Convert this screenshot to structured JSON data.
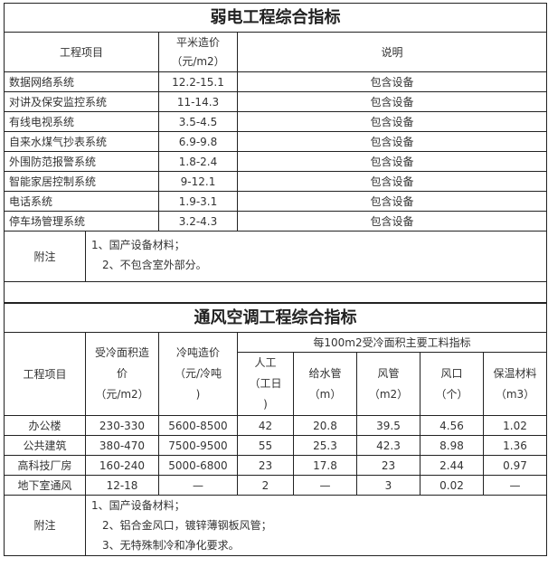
{
  "weak": {
    "title": "弱电工程综合指标",
    "headers": {
      "item": "工程项目",
      "price_line1": "平米造价",
      "price_line2": "（元/m2）",
      "desc": "说明"
    },
    "rows": [
      {
        "item": "数据网络系统",
        "price": "12.2-15.1",
        "desc": "包含设备"
      },
      {
        "item": "对讲及保安监控系统",
        "price": "11-14.3",
        "desc": "包含设备"
      },
      {
        "item": "有线电视系统",
        "price": "3.5-4.5",
        "desc": "包含设备"
      },
      {
        "item": "自来水煤气抄表系统",
        "price": "6.9-9.8",
        "desc": "包含设备"
      },
      {
        "item": "外围防范报警系统",
        "price": "1.8-2.4",
        "desc": "包含设备"
      },
      {
        "item": "智能家居控制系统",
        "price": "9-12.1",
        "desc": "包含设备"
      },
      {
        "item": "电话系统",
        "price": "1.9-3.1",
        "desc": "包含设备"
      },
      {
        "item": "停车场管理系统",
        "price": "3.2-4.3",
        "desc": "包含设备"
      }
    ],
    "note_label": "附注",
    "notes": [
      "1、国产设备材料；",
      "2、不包含室外部分。"
    ]
  },
  "hvac": {
    "title": "通风空调工程综合指标",
    "headers": {
      "item": "工程项目",
      "area_price": [
        "受冷面积造",
        "价",
        "（元/m2）"
      ],
      "ton_price": [
        "冷吨造价",
        "（元/冷吨",
        ")"
      ],
      "group": "每100m2受冷面积主要工料指标",
      "labor": [
        "人工",
        "（工日",
        ")"
      ],
      "water": [
        "给水管",
        "（m）"
      ],
      "duct": [
        "风管",
        "（m2）"
      ],
      "vent": [
        "风口",
        "（个）"
      ],
      "insul": [
        "保温材料",
        "（m3）"
      ]
    },
    "rows": [
      {
        "item": "办公楼",
        "area_price": "230-330",
        "ton_price": "5600-8500",
        "labor": "42",
        "water": "20.8",
        "duct": "39.5",
        "vent": "4.56",
        "insul": "1.02"
      },
      {
        "item": "公共建筑",
        "area_price": "380-470",
        "ton_price": "7500-9500",
        "labor": "55",
        "water": "25.3",
        "duct": "42.3",
        "vent": "8.98",
        "insul": "1.36"
      },
      {
        "item": "高科技厂房",
        "area_price": "160-240",
        "ton_price": "5000-6800",
        "labor": "23",
        "water": "17.8",
        "duct": "23",
        "vent": "2.44",
        "insul": "0.97"
      },
      {
        "item": "地下室通风",
        "area_price": "12-18",
        "ton_price": "—",
        "labor": "2",
        "water": "—",
        "duct": "3",
        "vent": "0.02",
        "insul": "—"
      }
    ],
    "note_label": "附注",
    "notes": [
      "1、国产设备材料；",
      "2、铝合金风口，镀锌薄钢板风管；",
      "3、无特殊制冷和净化要求。"
    ]
  }
}
